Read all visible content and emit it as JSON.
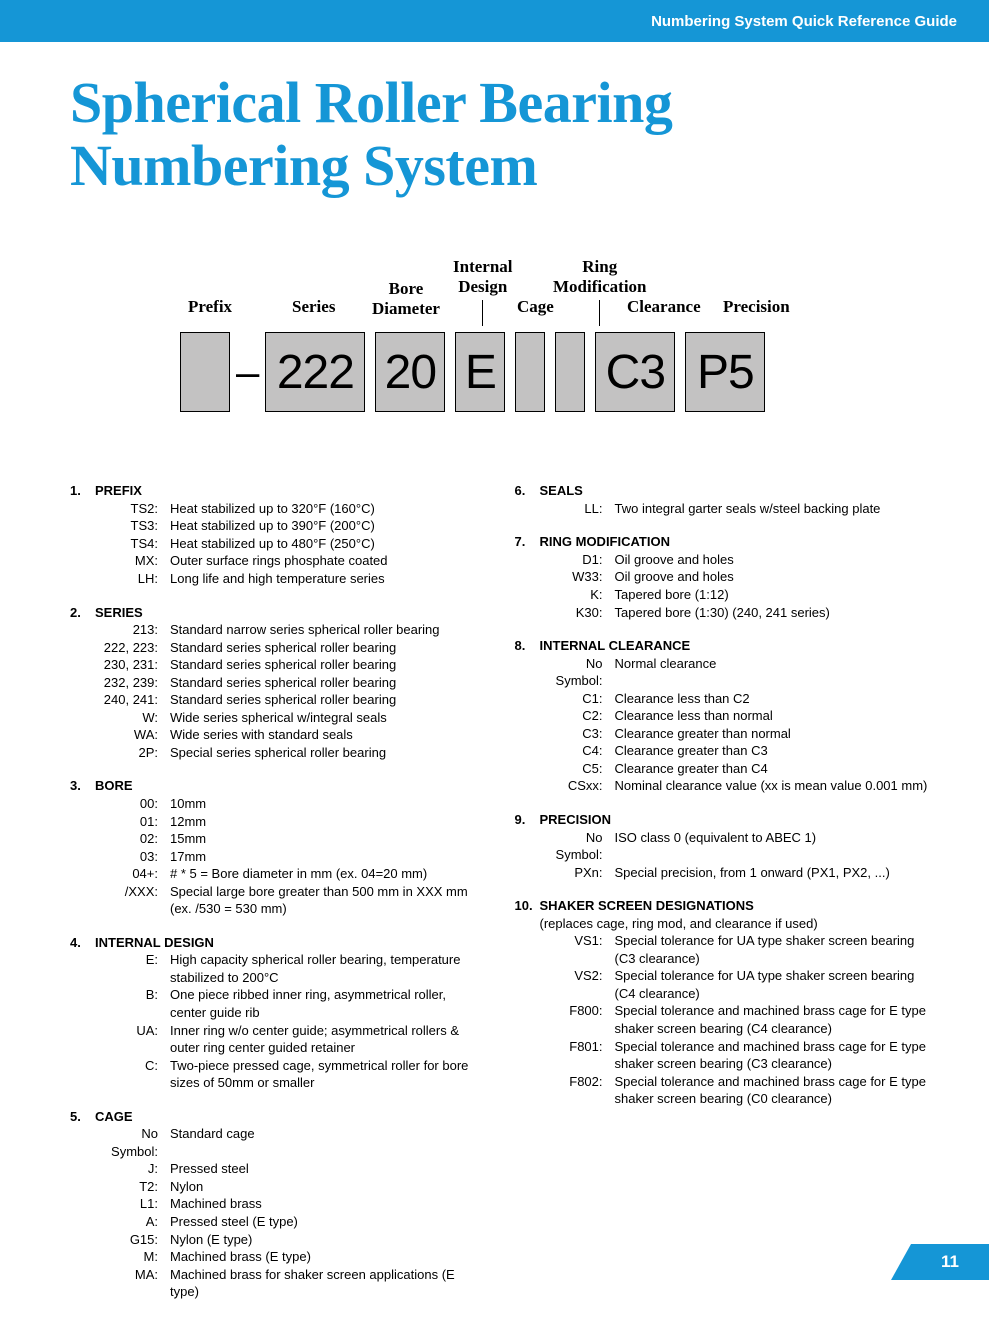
{
  "header": {
    "breadcrumb": "Numbering System Quick Reference Guide"
  },
  "title_line1": "Spherical Roller Bearing",
  "title_line2": "Numbering System",
  "diagram": {
    "labels": {
      "prefix": "Prefix",
      "series": "Series",
      "bore": "Bore\nDiameter",
      "internal": "Internal\nDesign",
      "cage": "Cage",
      "ringmod": "Ring\nModification",
      "clearance": "Clearance",
      "precision": "Precision"
    },
    "boxes": {
      "prefix": "",
      "dash": "–",
      "series": "222",
      "bore": "20",
      "internal": "E",
      "cage": "",
      "ringmod": "",
      "clearance": "C3",
      "precision": "P5"
    },
    "box_bg": "#c3c2c2"
  },
  "sections_left": [
    {
      "num": "1.",
      "title": "PREFIX",
      "rows": [
        {
          "k": "TS2:",
          "v": "Heat stabilized up to 320°F (160°C)"
        },
        {
          "k": "TS3:",
          "v": "Heat stabilized up to 390°F (200°C)"
        },
        {
          "k": "TS4:",
          "v": "Heat stabilized up to 480°F (250°C)"
        },
        {
          "k": "MX:",
          "v": "Outer surface rings phosphate coated"
        },
        {
          "k": "LH:",
          "v": "Long life and high temperature series"
        }
      ]
    },
    {
      "num": "2.",
      "title": "SERIES",
      "rows": [
        {
          "k": "213:",
          "v": "Standard narrow series spherical roller bearing"
        },
        {
          "k": "222, 223:",
          "v": "Standard series spherical roller bearing"
        },
        {
          "k": "230, 231:",
          "v": "Standard series spherical roller bearing"
        },
        {
          "k": "232, 239:",
          "v": "Standard series spherical roller bearing"
        },
        {
          "k": "240, 241:",
          "v": "Standard series spherical roller bearing"
        },
        {
          "k": "W:",
          "v": "Wide series spherical w/integral seals"
        },
        {
          "k": "WA:",
          "v": "Wide series with standard seals"
        },
        {
          "k": "2P:",
          "v": "Special series spherical roller bearing"
        }
      ]
    },
    {
      "num": "3.",
      "title": "BORE",
      "rows": [
        {
          "k": "00:",
          "v": "10mm"
        },
        {
          "k": "01:",
          "v": "12mm"
        },
        {
          "k": "02:",
          "v": "15mm"
        },
        {
          "k": "03:",
          "v": "17mm"
        },
        {
          "k": "04+:",
          "v": "# * 5 = Bore diameter in mm (ex. 04=20 mm)"
        },
        {
          "k": "/XXX:",
          "v": "Special large bore greater than 500 mm in XXX mm (ex. /530 = 530 mm)"
        }
      ]
    },
    {
      "num": "4.",
      "title": "INTERNAL DESIGN",
      "rows": [
        {
          "k": "E:",
          "v": "High capacity spherical roller bearing, temperature stabilized to 200°C"
        },
        {
          "k": "B:",
          "v": "One piece ribbed inner ring, asymmetrical roller, center guide rib"
        },
        {
          "k": "UA:",
          "v": "Inner ring w/o center guide; asymmetrical rollers & outer ring center guided retainer"
        },
        {
          "k": "C:",
          "v": "Two-piece pressed cage, symmetrical roller for bore sizes of 50mm or smaller"
        }
      ]
    },
    {
      "num": "5.",
      "title": "CAGE",
      "rows": [
        {
          "k": "No Symbol:",
          "v": "Standard cage"
        },
        {
          "k": "J:",
          "v": "Pressed steel"
        },
        {
          "k": "T2:",
          "v": "Nylon"
        },
        {
          "k": "L1:",
          "v": "Machined brass"
        },
        {
          "k": "A:",
          "v": "Pressed steel (E type)"
        },
        {
          "k": "G15:",
          "v": "Nylon (E type)"
        },
        {
          "k": "M:",
          "v": "Machined brass (E type)"
        },
        {
          "k": "MA:",
          "v": "Machined brass for shaker screen applications (E type)"
        }
      ]
    }
  ],
  "sections_right": [
    {
      "num": "6.",
      "title": "SEALS",
      "rows": [
        {
          "k": "LL:",
          "v": "Two integral garter seals w/steel backing plate"
        }
      ]
    },
    {
      "num": "7.",
      "title": "RING MODIFICATION",
      "rows": [
        {
          "k": "D1:",
          "v": "Oil groove and holes"
        },
        {
          "k": "W33:",
          "v": "Oil groove and holes"
        },
        {
          "k": "K:",
          "v": "Tapered bore (1:12)"
        },
        {
          "k": "K30:",
          "v": "Tapered bore (1:30) (240, 241 series)"
        }
      ]
    },
    {
      "num": "8.",
      "title": "INTERNAL CLEARANCE",
      "rows": [
        {
          "k": "No Symbol:",
          "v": "Normal clearance"
        },
        {
          "k": "C1:",
          "v": "Clearance less than C2"
        },
        {
          "k": "C2:",
          "v": "Clearance less than normal"
        },
        {
          "k": "C3:",
          "v": "Clearance greater than normal"
        },
        {
          "k": "C4:",
          "v": "Clearance greater than C3"
        },
        {
          "k": "C5:",
          "v": "Clearance greater than C4"
        },
        {
          "k": "CSxx:",
          "v": "Nominal clearance value (xx is mean value 0.001 mm)"
        }
      ]
    },
    {
      "num": "9.",
      "title": "PRECISION",
      "rows": [
        {
          "k": "No Symbol:",
          "v": "ISO class 0 (equivalent to ABEC 1)"
        },
        {
          "k": "PXn:",
          "v": "Special precision, from 1 onward (PX1, PX2, ...)"
        }
      ]
    },
    {
      "num": "10.",
      "title": "SHAKER SCREEN DESIGNATIONS",
      "note": "(replaces cage, ring mod, and clearance if used)",
      "rows": [
        {
          "k": "VS1:",
          "v": "Special tolerance for UA type shaker screen bearing (C3 clearance)"
        },
        {
          "k": "VS2:",
          "v": "Special tolerance for UA type shaker screen bearing (C4 clearance)"
        },
        {
          "k": "F800:",
          "v": "Special tolerance and machined brass cage for E type shaker screen bearing (C4 clearance)"
        },
        {
          "k": "F801:",
          "v": "Special tolerance and machined brass cage for E type shaker screen bearing (C3 clearance)"
        },
        {
          "k": "F802:",
          "v": "Special tolerance and machined brass cage for E type shaker screen bearing (C0 clearance)"
        }
      ]
    }
  ],
  "page_number": "11",
  "colors": {
    "brand": "#1596d6",
    "box_bg": "#c3c2c2",
    "text": "#000000"
  }
}
